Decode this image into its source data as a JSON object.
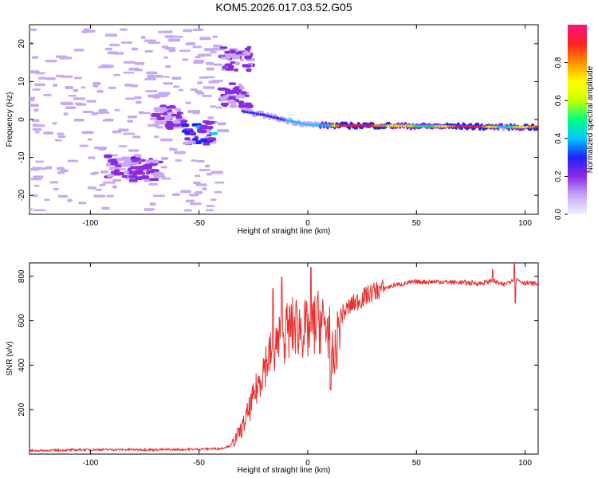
{
  "title": "KOM5.2026.017.03.52.G05",
  "chart_data": [
    {
      "type": "heatmap",
      "name": "spectrogram",
      "xlabel": "Height of straight line (km)",
      "ylabel": "Frequency (Hz)",
      "xlim": [
        -128,
        106
      ],
      "ylim": [
        -25,
        25
      ],
      "xticks": [
        -100,
        -50,
        0,
        50,
        100
      ],
      "yticks": [
        -20,
        -10,
        0,
        10,
        20
      ],
      "colorbar": {
        "label": "Normalized spectral amplitude",
        "range": [
          0,
          1
        ],
        "ticks": [
          0.0,
          0.2,
          0.4,
          0.6,
          0.8
        ],
        "colormap": [
          "#f4f0ff",
          "#c8a8f5",
          "#8a2be2",
          "#2020ff",
          "#00c8ff",
          "#00ff80",
          "#c8ff00",
          "#ffff00",
          "#ff9000",
          "#ff2020",
          "#ff1080"
        ]
      },
      "main_band": {
        "description": "strong narrow tone",
        "points": [
          {
            "x": -30,
            "f": 2.2,
            "amp": 0.25
          },
          {
            "x": -20,
            "f": 1.2,
            "amp": 0.3
          },
          {
            "x": -10,
            "f": -0.2,
            "amp": 0.35
          },
          {
            "x": 0,
            "f": -1.3,
            "amp": 0.4
          },
          {
            "x": 10,
            "f": -1.6,
            "amp": 0.45
          },
          {
            "x": 15,
            "f": -1.6,
            "amp": 0.9
          },
          {
            "x": 30,
            "f": -1.6,
            "amp": 0.85
          },
          {
            "x": 45,
            "f": -1.7,
            "amp": 0.6
          },
          {
            "x": 55,
            "f": -1.8,
            "amp": 0.45
          },
          {
            "x": 70,
            "f": -1.8,
            "amp": 0.9
          },
          {
            "x": 80,
            "f": -1.9,
            "amp": 0.85
          },
          {
            "x": 90,
            "f": -2.0,
            "amp": 0.4
          },
          {
            "x": 106,
            "f": -2.0,
            "amp": 0.9
          }
        ]
      },
      "clusters": [
        {
          "x": -85,
          "f": -12.5,
          "amp": 0.22
        },
        {
          "x": -75,
          "f": -13.5,
          "amp": 0.2
        },
        {
          "x": -63,
          "f": 0.5,
          "amp": 0.2
        },
        {
          "x": -50,
          "f": -3.5,
          "amp": 0.3
        },
        {
          "x": -33,
          "f": 16,
          "amp": 0.18
        },
        {
          "x": -33,
          "f": 6.5,
          "amp": 0.2
        }
      ]
    },
    {
      "type": "line",
      "name": "snr",
      "xlabel": "Height of straight line (km)",
      "ylabel": "SNR (v/v)",
      "xlim": [
        -128,
        106
      ],
      "ylim": [
        0,
        860
      ],
      "xticks": [
        -100,
        -50,
        0,
        50,
        100
      ],
      "yticks": [
        200,
        400,
        600,
        800
      ],
      "color": "#e83030",
      "x": [
        -128,
        -100,
        -60,
        -40,
        -35,
        -30,
        -25,
        -20,
        -15,
        -10,
        -5,
        0,
        5,
        10,
        12,
        15,
        20,
        25,
        30,
        40,
        50,
        60,
        70,
        80,
        85,
        90,
        95,
        100,
        106
      ],
      "y": [
        15,
        20,
        20,
        25,
        40,
        120,
        250,
        400,
        480,
        550,
        580,
        550,
        600,
        560,
        400,
        620,
        670,
        700,
        730,
        760,
        775,
        775,
        772,
        768,
        780,
        760,
        790,
        770,
        765
      ],
      "spikes": [
        {
          "x": -12,
          "y": 795
        },
        {
          "x": -16,
          "y": 745
        },
        {
          "x": 1.5,
          "y": 840
        },
        {
          "x": 10.5,
          "y": 290
        },
        {
          "x": 85,
          "y": 830
        },
        {
          "x": 95,
          "y": 855
        },
        {
          "x": 95.5,
          "y": 680
        }
      ]
    }
  ]
}
